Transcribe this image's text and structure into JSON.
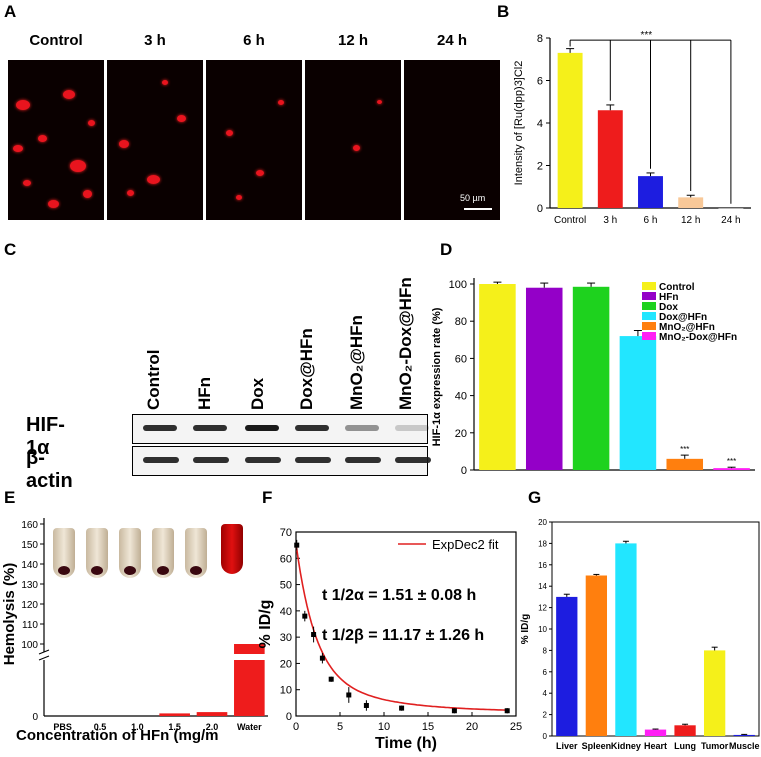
{
  "panels": {
    "A": {
      "label": "A",
      "headers": [
        "Control",
        "3 h",
        "6 h",
        "12 h",
        "24 h"
      ],
      "scale_bar": "50 µm"
    },
    "B": {
      "label": "B"
    },
    "C": {
      "label": "C",
      "lanes": [
        "Control",
        "HFn",
        "Dox",
        "Dox@HFn",
        "MnO₂@HFn",
        "MnO₂-Dox@HFn"
      ],
      "rows": [
        "HIF-1α",
        "β-actin"
      ],
      "hif_intensity": [
        0.9,
        0.9,
        1.0,
        0.9,
        0.45,
        0.2
      ],
      "actin_intensity": [
        0.9,
        0.9,
        0.9,
        0.9,
        0.9,
        0.9
      ]
    },
    "D": {
      "label": "D"
    },
    "E": {
      "label": "E"
    },
    "F": {
      "label": "F"
    },
    "G": {
      "label": "G"
    }
  },
  "colors": {
    "yellow": "#f5f01a",
    "red": "#ee1c1c",
    "blue": "#1d1de0",
    "peach": "#f8c898",
    "purple": "#9400c8",
    "green": "#1ed21e",
    "cyan": "#22e6ff",
    "orange": "#ff7f0e",
    "magenta": "#ff1ef5",
    "fitline": "#e02020"
  },
  "chart_data": [
    {
      "panel": "B",
      "type": "bar",
      "categories": [
        "Control",
        "3 h",
        "6 h",
        "12 h",
        "24 h"
      ],
      "values": [
        7.3,
        4.6,
        1.5,
        0.5,
        0.0
      ],
      "errors": [
        0.2,
        0.25,
        0.15,
        0.1,
        0.0
      ],
      "colors": [
        "#f5f01a",
        "#ee1c1c",
        "#1d1de0",
        "#f8c898",
        "#b0b0b0"
      ],
      "ylabel": "Intensity of [Ru(dpp)3]Cl2",
      "ylim": [
        0,
        8
      ],
      "yticks": [
        0,
        2,
        4,
        6,
        8
      ],
      "annotation": "***"
    },
    {
      "panel": "D",
      "type": "bar",
      "categories": [
        "Control",
        "HFn",
        "Dox",
        "Dox@HFn",
        "MnO2@HFn",
        "MnO2-Dox@HFn"
      ],
      "legend": [
        "Control",
        "HFn",
        "Dox",
        "Dox@HFn",
        "MnO₂@HFn",
        "MnO₂-Dox@HFn"
      ],
      "values": [
        100,
        98,
        98.5,
        72,
        6,
        1
      ],
      "errors": [
        1,
        2.5,
        2,
        3,
        2,
        0.5
      ],
      "colors": [
        "#f5f01a",
        "#9400c8",
        "#1ed21e",
        "#22e6ff",
        "#ff7f0e",
        "#ff1ef5"
      ],
      "ylabel": "HIF-1α expression rate (%)",
      "ylim": [
        0,
        100
      ],
      "yticks": [
        0,
        20,
        40,
        60,
        80,
        100
      ],
      "annotations": [
        "***",
        "***"
      ],
      "legend_position": "top-right"
    },
    {
      "panel": "E",
      "type": "bar",
      "categories": [
        "PBS",
        "0.5",
        "1.0",
        "1.5",
        "2.0",
        "Water"
      ],
      "values": [
        0,
        0,
        0,
        1,
        1.5,
        100
      ],
      "ylabel": "Hemolysis (%)",
      "xlabel": "Concentration of HFn (mg/m",
      "yticks": [
        100,
        110,
        120,
        130,
        140,
        150,
        160
      ],
      "lower_ticks": [
        0
      ],
      "axis_break": true
    },
    {
      "panel": "F",
      "type": "scatter",
      "x": [
        0.083,
        1,
        2,
        3,
        4,
        6,
        8,
        12,
        18,
        24
      ],
      "y": [
        65,
        38,
        31,
        22,
        14,
        8,
        4,
        3,
        2,
        2
      ],
      "errors": [
        2,
        2,
        3,
        2,
        1,
        3,
        2,
        1,
        1,
        1
      ],
      "fit": {
        "name": "ExpDec2 fit",
        "type": "biexponential",
        "t_half_alpha": "1.51 ± 0.08",
        "t_half_beta": "11.17 ± 1.26"
      },
      "annotations": [
        "t 1/2α = 1.51 ± 0.08 h",
        "t 1/2β = 11.17 ± 1.26 h"
      ],
      "xlabel": "Time (h)",
      "ylabel": "% ID/g",
      "xlim": [
        0,
        25
      ],
      "ylim": [
        0,
        70
      ],
      "xticks": [
        0,
        5,
        10,
        15,
        20,
        25
      ],
      "yticks": [
        0,
        10,
        20,
        30,
        40,
        50,
        60,
        70
      ]
    },
    {
      "panel": "G",
      "type": "bar",
      "categories": [
        "Liver",
        "Spleen",
        "Kidney",
        "Heart",
        "Lung",
        "Tumor",
        "Muscle"
      ],
      "values": [
        13,
        15,
        18,
        0.6,
        1.0,
        8,
        0.1
      ],
      "errors": [
        0.25,
        0.1,
        0.2,
        0.05,
        0.1,
        0.3,
        0.05
      ],
      "colors": [
        "#1d1de0",
        "#ff7f0e",
        "#22e6ff",
        "#ff1ef5",
        "#ee1c1c",
        "#f5f01a",
        "#1d1de0"
      ],
      "ylabel": "% ID/g",
      "ylim": [
        0,
        20
      ],
      "yticks": [
        0,
        2,
        4,
        6,
        8,
        10,
        12,
        14,
        16,
        18,
        20
      ]
    }
  ]
}
